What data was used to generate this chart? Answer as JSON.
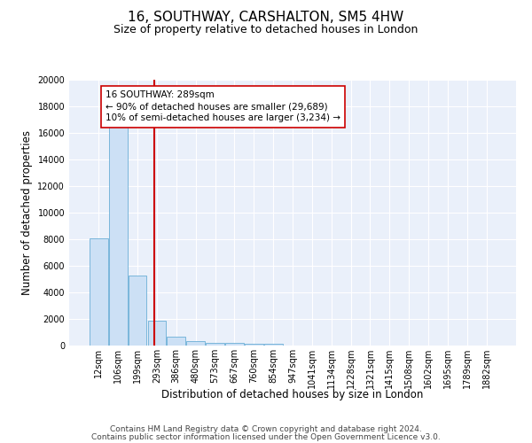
{
  "title": "16, SOUTHWAY, CARSHALTON, SM5 4HW",
  "subtitle": "Size of property relative to detached houses in London",
  "xlabel": "Distribution of detached houses by size in London",
  "ylabel": "Number of detached properties",
  "categories": [
    "12sqm",
    "106sqm",
    "199sqm",
    "293sqm",
    "386sqm",
    "480sqm",
    "573sqm",
    "667sqm",
    "760sqm",
    "854sqm",
    "947sqm",
    "1041sqm",
    "1134sqm",
    "1228sqm",
    "1321sqm",
    "1415sqm",
    "1508sqm",
    "1602sqm",
    "1695sqm",
    "1789sqm",
    "1882sqm"
  ],
  "values": [
    8100,
    16500,
    5300,
    1850,
    700,
    320,
    220,
    190,
    160,
    130,
    0,
    0,
    0,
    0,
    0,
    0,
    0,
    0,
    0,
    0,
    0
  ],
  "bar_color": "#cce0f5",
  "bar_edge_color": "#6aaed6",
  "vline_color": "#cc0000",
  "annotation_line1": "16 SOUTHWAY: 289sqm",
  "annotation_line2": "← 90% of detached houses are smaller (29,689)",
  "annotation_line3": "10% of semi-detached houses are larger (3,234) →",
  "annotation_box_color": "#ffffff",
  "annotation_box_edge": "#cc0000",
  "ylim": [
    0,
    20000
  ],
  "yticks": [
    0,
    2000,
    4000,
    6000,
    8000,
    10000,
    12000,
    14000,
    16000,
    18000,
    20000
  ],
  "background_color": "#eaf0fa",
  "footer_line1": "Contains HM Land Registry data © Crown copyright and database right 2024.",
  "footer_line2": "Contains public sector information licensed under the Open Government Licence v3.0.",
  "title_fontsize": 11,
  "subtitle_fontsize": 9,
  "axis_label_fontsize": 8.5,
  "tick_fontsize": 7,
  "footer_fontsize": 6.5
}
